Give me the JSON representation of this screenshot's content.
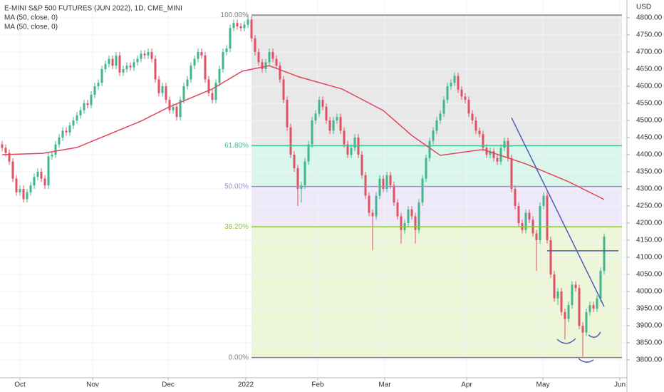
{
  "chart_data": {
    "type": "candlestick",
    "title": "E-MINI S&P 500 FUTURES (JUN 2022), 1D, CME_MINI",
    "legend": [
      "MA (50, close, 0)",
      "MA (50, close, 0)"
    ],
    "y_axis_label": "USD",
    "up_color": "#3fb68b",
    "down_color": "#e05263",
    "grid": true,
    "xlim": [
      -0.6,
      175.4
    ],
    "ylim": [
      3748,
      4852
    ],
    "xticks": [
      {
        "value": 5,
        "label": "Oct"
      },
      {
        "value": 25.4,
        "label": "Nov"
      },
      {
        "value": 46.6,
        "label": "Dec"
      },
      {
        "value": 68.4,
        "label": "2022"
      },
      {
        "value": 88.6,
        "label": "Feb"
      },
      {
        "value": 107.4,
        "label": "Mar"
      },
      {
        "value": 130.4,
        "label": "Apr"
      },
      {
        "value": 151.8,
        "label": "May"
      },
      {
        "value": 173.4,
        "label": "Jun"
      }
    ],
    "yticks": [
      {
        "value": 3800,
        "label": "3800.00"
      },
      {
        "value": 3850,
        "label": "3850.00"
      },
      {
        "value": 3900,
        "label": "3900.00"
      },
      {
        "value": 3950,
        "label": "3950.00"
      },
      {
        "value": 4000,
        "label": "4000.00"
      },
      {
        "value": 4050,
        "label": "4050.00"
      },
      {
        "value": 4100,
        "label": "4100.00"
      },
      {
        "value": 4150,
        "label": "4150.00"
      },
      {
        "value": 4200,
        "label": "4200.00"
      },
      {
        "value": 4250,
        "label": "4250.00"
      },
      {
        "value": 4300,
        "label": "4300.00"
      },
      {
        "value": 4350,
        "label": "4350.00"
      },
      {
        "value": 4400,
        "label": "4400.00"
      },
      {
        "value": 4450,
        "label": "4450.00"
      },
      {
        "value": 4500,
        "label": "4500.00"
      },
      {
        "value": 4550,
        "label": "4550.00"
      },
      {
        "value": 4600,
        "label": "4600.00"
      },
      {
        "value": 4650,
        "label": "4650.00"
      },
      {
        "value": 4700,
        "label": "4700.00"
      },
      {
        "value": 4750,
        "label": "4750.00"
      },
      {
        "value": 4800,
        "label": "4800.00"
      }
    ],
    "ohlc": [
      [
        4430,
        4440,
        4410,
        4420
      ],
      [
        4420,
        4430,
        4395,
        4405
      ],
      [
        4405,
        4415,
        4370,
        4380
      ],
      [
        4380,
        4390,
        4320,
        4330
      ],
      [
        4330,
        4340,
        4280,
        4290
      ],
      [
        4290,
        4310,
        4280,
        4300
      ],
      [
        4300,
        4310,
        4260,
        4270
      ],
      [
        4270,
        4300,
        4260,
        4290
      ],
      [
        4290,
        4320,
        4280,
        4310
      ],
      [
        4310,
        4345,
        4300,
        4335
      ],
      [
        4335,
        4360,
        4325,
        4350
      ],
      [
        4350,
        4360,
        4320,
        4330
      ],
      [
        4330,
        4340,
        4300,
        4310
      ],
      [
        4310,
        4405,
        4300,
        4395
      ],
      [
        4395,
        4410,
        4385,
        4400
      ],
      [
        4400,
        4440,
        4390,
        4430
      ],
      [
        4430,
        4460,
        4420,
        4450
      ],
      [
        4450,
        4480,
        4440,
        4470
      ],
      [
        4470,
        4480,
        4455,
        4465
      ],
      [
        4465,
        4495,
        4455,
        4485
      ],
      [
        4485,
        4510,
        4475,
        4500
      ],
      [
        4500,
        4525,
        4490,
        4515
      ],
      [
        4515,
        4540,
        4505,
        4530
      ],
      [
        4530,
        4560,
        4520,
        4550
      ],
      [
        4550,
        4560,
        4535,
        4545
      ],
      [
        4545,
        4585,
        4535,
        4575
      ],
      [
        4575,
        4610,
        4565,
        4600
      ],
      [
        4600,
        4620,
        4590,
        4610
      ],
      [
        4610,
        4660,
        4600,
        4650
      ],
      [
        4650,
        4675,
        4640,
        4665
      ],
      [
        4665,
        4690,
        4655,
        4680
      ],
      [
        4680,
        4690,
        4650,
        4660
      ],
      [
        4660,
        4700,
        4650,
        4690
      ],
      [
        4690,
        4700,
        4630,
        4640
      ],
      [
        4640,
        4660,
        4630,
        4650
      ],
      [
        4650,
        4670,
        4640,
        4660
      ],
      [
        4660,
        4670,
        4645,
        4655
      ],
      [
        4655,
        4680,
        4645,
        4670
      ],
      [
        4670,
        4690,
        4660,
        4680
      ],
      [
        4680,
        4705,
        4670,
        4695
      ],
      [
        4695,
        4705,
        4680,
        4690
      ],
      [
        4690,
        4710,
        4680,
        4700
      ],
      [
        4700,
        4710,
        4670,
        4680
      ],
      [
        4680,
        4690,
        4610,
        4620
      ],
      [
        4620,
        4630,
        4570,
        4580
      ],
      [
        4580,
        4610,
        4570,
        4600
      ],
      [
        4600,
        4610,
        4550,
        4560
      ],
      [
        4560,
        4570,
        4520,
        4530
      ],
      [
        4530,
        4550,
        4520,
        4540
      ],
      [
        4540,
        4550,
        4500,
        4510
      ],
      [
        4510,
        4570,
        4500,
        4560
      ],
      [
        4560,
        4610,
        4550,
        4600
      ],
      [
        4600,
        4630,
        4590,
        4620
      ],
      [
        4620,
        4670,
        4610,
        4660
      ],
      [
        4660,
        4690,
        4650,
        4680
      ],
      [
        4680,
        4710,
        4670,
        4700
      ],
      [
        4700,
        4710,
        4680,
        4690
      ],
      [
        4690,
        4700,
        4610,
        4620
      ],
      [
        4620,
        4630,
        4570,
        4580
      ],
      [
        4580,
        4590,
        4550,
        4560
      ],
      [
        4560,
        4620,
        4550,
        4610
      ],
      [
        4610,
        4660,
        4600,
        4650
      ],
      [
        4650,
        4710,
        4640,
        4700
      ],
      [
        4700,
        4720,
        4690,
        4710
      ],
      [
        4710,
        4780,
        4700,
        4770
      ],
      [
        4770,
        4795,
        4760,
        4785
      ],
      [
        4785,
        4795,
        4765,
        4775
      ],
      [
        4775,
        4785,
        4760,
        4770
      ],
      [
        4770,
        4790,
        4760,
        4780
      ],
      [
        4780,
        4808,
        4770,
        4795
      ],
      [
        4795,
        4805,
        4730,
        4740
      ],
      [
        4740,
        4750,
        4690,
        4700
      ],
      [
        4700,
        4710,
        4660,
        4670
      ],
      [
        4670,
        4680,
        4640,
        4650
      ],
      [
        4650,
        4680,
        4640,
        4670
      ],
      [
        4670,
        4710,
        4660,
        4700
      ],
      [
        4700,
        4710,
        4670,
        4680
      ],
      [
        4680,
        4690,
        4650,
        4660
      ],
      [
        4660,
        4670,
        4610,
        4620
      ],
      [
        4620,
        4630,
        4550,
        4560
      ],
      [
        4560,
        4570,
        4470,
        4480
      ],
      [
        4480,
        4490,
        4390,
        4400
      ],
      [
        4400,
        4410,
        4350,
        4360
      ],
      [
        4360,
        4370,
        4250,
        4300
      ],
      [
        4300,
        4320,
        4260,
        4310
      ],
      [
        4310,
        4390,
        4300,
        4380
      ],
      [
        4380,
        4440,
        4370,
        4430
      ],
      [
        4430,
        4510,
        4420,
        4500
      ],
      [
        4500,
        4530,
        4490,
        4520
      ],
      [
        4520,
        4570,
        4510,
        4560
      ],
      [
        4560,
        4570,
        4530,
        4540
      ],
      [
        4540,
        4550,
        4490,
        4500
      ],
      [
        4500,
        4510,
        4460,
        4470
      ],
      [
        4470,
        4510,
        4460,
        4500
      ],
      [
        4500,
        4520,
        4490,
        4510
      ],
      [
        4510,
        4520,
        4460,
        4470
      ],
      [
        4470,
        4480,
        4420,
        4430
      ],
      [
        4430,
        4440,
        4390,
        4400
      ],
      [
        4400,
        4430,
        4390,
        4420
      ],
      [
        4420,
        4460,
        4410,
        4450
      ],
      [
        4450,
        4460,
        4390,
        4400
      ],
      [
        4400,
        4410,
        4330,
        4340
      ],
      [
        4340,
        4350,
        4270,
        4280
      ],
      [
        4280,
        4290,
        4220,
        4230
      ],
      [
        4230,
        4240,
        4120,
        4220
      ],
      [
        4220,
        4290,
        4210,
        4280
      ],
      [
        4280,
        4340,
        4270,
        4330
      ],
      [
        4330,
        4340,
        4290,
        4300
      ],
      [
        4300,
        4350,
        4290,
        4340
      ],
      [
        4340,
        4350,
        4300,
        4310
      ],
      [
        4310,
        4320,
        4250,
        4260
      ],
      [
        4260,
        4270,
        4210,
        4220
      ],
      [
        4220,
        4230,
        4140,
        4180
      ],
      [
        4180,
        4210,
        4170,
        4200
      ],
      [
        4200,
        4250,
        4190,
        4240
      ],
      [
        4240,
        4250,
        4210,
        4220
      ],
      [
        4220,
        4230,
        4140,
        4180
      ],
      [
        4180,
        4270,
        4170,
        4260
      ],
      [
        4260,
        4340,
        4250,
        4330
      ],
      [
        4330,
        4400,
        4320,
        4390
      ],
      [
        4390,
        4450,
        4380,
        4440
      ],
      [
        4440,
        4480,
        4430,
        4470
      ],
      [
        4470,
        4510,
        4460,
        4500
      ],
      [
        4500,
        4530,
        4490,
        4520
      ],
      [
        4520,
        4570,
        4510,
        4560
      ],
      [
        4560,
        4610,
        4550,
        4600
      ],
      [
        4600,
        4620,
        4590,
        4610
      ],
      [
        4610,
        4640,
        4600,
        4630
      ],
      [
        4630,
        4640,
        4580,
        4590
      ],
      [
        4590,
        4600,
        4560,
        4570
      ],
      [
        4570,
        4580,
        4550,
        4560
      ],
      [
        4560,
        4570,
        4510,
        4520
      ],
      [
        4520,
        4530,
        4490,
        4500
      ],
      [
        4500,
        4510,
        4460,
        4470
      ],
      [
        4470,
        4480,
        4450,
        4460
      ],
      [
        4460,
        4470,
        4410,
        4420
      ],
      [
        4420,
        4430,
        4390,
        4400
      ],
      [
        4400,
        4420,
        4390,
        4410
      ],
      [
        4410,
        4420,
        4380,
        4390
      ],
      [
        4390,
        4400,
        4370,
        4380
      ],
      [
        4380,
        4430,
        4370,
        4420
      ],
      [
        4420,
        4450,
        4410,
        4440
      ],
      [
        4440,
        4450,
        4380,
        4390
      ],
      [
        4390,
        4400,
        4290,
        4300
      ],
      [
        4300,
        4310,
        4240,
        4250
      ],
      [
        4250,
        4260,
        4190,
        4200
      ],
      [
        4200,
        4210,
        4170,
        4180
      ],
      [
        4180,
        4240,
        4170,
        4230
      ],
      [
        4230,
        4240,
        4200,
        4210
      ],
      [
        4210,
        4220,
        4160,
        4170
      ],
      [
        4170,
        4180,
        4060,
        4150
      ],
      [
        4150,
        4260,
        4140,
        4250
      ],
      [
        4250,
        4290,
        4240,
        4280
      ],
      [
        4280,
        4290,
        4140,
        4150
      ],
      [
        4150,
        4160,
        4040,
        4050
      ],
      [
        4050,
        4060,
        3970,
        3980
      ],
      [
        3980,
        4010,
        3960,
        4000
      ],
      [
        4000,
        4010,
        3930,
        3940
      ],
      [
        3940,
        3950,
        3860,
        3920
      ],
      [
        3920,
        3970,
        3910,
        3960
      ],
      [
        3960,
        4030,
        3950,
        4020
      ],
      [
        4020,
        4030,
        4000,
        4010
      ],
      [
        4010,
        4020,
        3890,
        3900
      ],
      [
        3900,
        3910,
        3810,
        3880
      ],
      [
        3880,
        3950,
        3870,
        3940
      ],
      [
        3940,
        3970,
        3930,
        3960
      ],
      [
        3960,
        3970,
        3940,
        3950
      ],
      [
        3950,
        3990,
        3940,
        3980
      ],
      [
        3980,
        4070,
        3970,
        4060
      ],
      [
        4060,
        4170,
        4050,
        4160
      ]
    ],
    "ma": {
      "color": "#e0465a",
      "x": [
        0,
        11.4,
        21,
        39,
        47,
        59,
        67.4,
        75,
        83.4,
        95.4,
        107,
        115,
        123,
        135,
        147,
        159,
        169
      ],
      "y": [
        4400,
        4404,
        4421,
        4498,
        4540,
        4592,
        4644,
        4660,
        4627,
        4592,
        4529,
        4456,
        4398,
        4415,
        4373,
        4321,
        4269
      ]
    },
    "fib": {
      "start": 70,
      "end": 174,
      "levels": [
        {
          "value": 4808,
          "label": "100.00%",
          "color": "#808080",
          "fill": "#e8e8e8"
        },
        {
          "value": 4426,
          "label": "61.80%",
          "color": "#3cbf94",
          "fill": "#d9f5ec"
        },
        {
          "value": 4307,
          "label": "50.00%",
          "color": "#9a8fd0",
          "fill": "#eee9f8"
        },
        {
          "value": 4189,
          "label": "38.20%",
          "color": "#8fc43a",
          "fill": "#eef6da"
        },
        {
          "value": 3807,
          "label": "0.00%",
          "color": "#808080"
        }
      ]
    },
    "trendlines": [
      {
        "x": [
          143,
          169
        ],
        "y": [
          4508,
          3956
        ],
        "color": "#4a5fb0"
      },
      {
        "x": [
          153,
          173
        ],
        "y": [
          4119,
          4119
        ],
        "color": "#4a5fb0"
      }
    ]
  }
}
